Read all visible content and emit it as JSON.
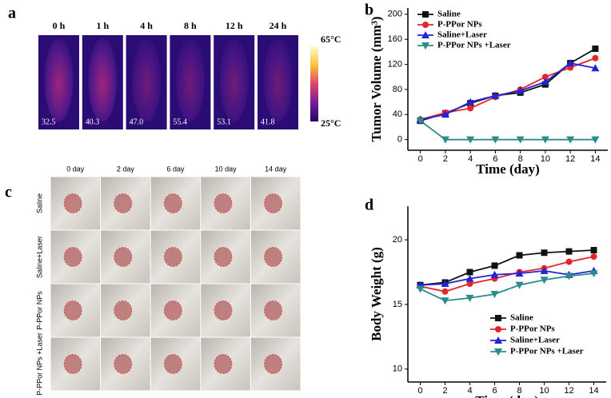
{
  "panel_labels": [
    "a",
    "b",
    "c",
    "d"
  ],
  "thermal": {
    "times": [
      "0  h",
      "1  h",
      "4  h",
      "8  h",
      "12  h",
      "24  h"
    ],
    "temperatures": [
      "32.5",
      "40.3",
      "47.0",
      "55.4",
      "53.1",
      "41.8"
    ],
    "scale_max": "65°C",
    "scale_min": "25°C"
  },
  "photos": {
    "columns": [
      "0 day",
      "2 day",
      "6 day",
      "10 day",
      "14 day"
    ],
    "rows": [
      "Saline",
      "Saline+Laser",
      "P-PPor NPs",
      "P-PPor NPs +Laser"
    ]
  },
  "chart_data": [
    {
      "type": "line",
      "x_label": "Time (day)",
      "y_label": "Tumor Volume (mm³)",
      "x": [
        0,
        2,
        4,
        6,
        8,
        10,
        12,
        14
      ],
      "xlim": [
        -1,
        15
      ],
      "xticks": [
        0,
        2,
        4,
        6,
        8,
        10,
        12,
        14
      ],
      "ylim": [
        -17,
        210
      ],
      "yticks": [
        0,
        40,
        80,
        120,
        160,
        200
      ],
      "legend": "upper left",
      "series": [
        {
          "name": "Saline",
          "color": "#111111",
          "marker": "square",
          "values": [
            30,
            42,
            58,
            70,
            75,
            88,
            122,
            145
          ]
        },
        {
          "name": "P-PPor NPs",
          "color": "#e3262b",
          "marker": "circle",
          "values": [
            32,
            43,
            50,
            68,
            80,
            100,
            115,
            130
          ]
        },
        {
          "name": "Saline+Laser",
          "color": "#2323d8",
          "marker": "triangle-up",
          "values": [
            32,
            40,
            60,
            70,
            78,
            92,
            122,
            114
          ]
        },
        {
          "name": "P-PPor NPs +Laser",
          "color": "#2b8c8a",
          "marker": "triangle-down",
          "values": [
            30,
            0,
            0,
            0,
            0,
            0,
            0,
            0
          ]
        }
      ]
    },
    {
      "type": "line",
      "x_label": "Time (day)",
      "y_label": "Body Weight (g)",
      "x": [
        0,
        2,
        4,
        6,
        8,
        10,
        12,
        14
      ],
      "xlim": [
        -1,
        15
      ],
      "xticks": [
        0,
        2,
        4,
        6,
        8,
        10,
        12,
        14
      ],
      "ylim": [
        9,
        22.6
      ],
      "yticks": [
        10,
        15,
        20
      ],
      "legend": "lower right",
      "series": [
        {
          "name": "Saline",
          "color": "#111111",
          "marker": "square",
          "values": [
            16.5,
            16.7,
            17.5,
            18.0,
            18.8,
            19.0,
            19.1,
            19.2
          ]
        },
        {
          "name": "P-PPor NPs",
          "color": "#e3262b",
          "marker": "circle",
          "values": [
            16.4,
            16.0,
            16.6,
            17.0,
            17.5,
            17.8,
            18.3,
            18.7
          ]
        },
        {
          "name": "Saline+Laser",
          "color": "#2323d8",
          "marker": "triangle-up",
          "values": [
            16.5,
            16.6,
            17.0,
            17.3,
            17.4,
            17.6,
            17.3,
            17.6
          ]
        },
        {
          "name": "P-PPor NPs +Laser",
          "color": "#2b8c8a",
          "marker": "triangle-down",
          "values": [
            16.2,
            15.3,
            15.5,
            15.8,
            16.5,
            16.9,
            17.2,
            17.4
          ]
        }
      ]
    }
  ]
}
